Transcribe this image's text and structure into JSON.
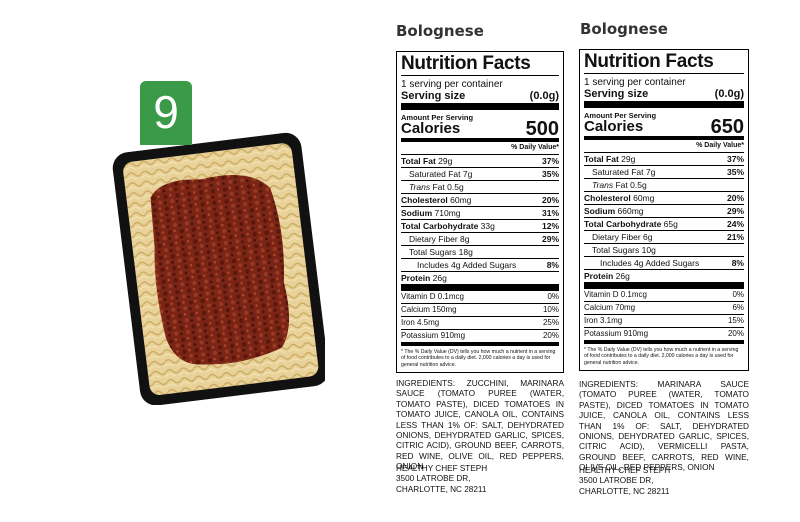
{
  "badge": {
    "number": "9"
  },
  "labels": [
    {
      "product_title": "Bolognese",
      "facts_title": "Nutrition Facts",
      "servings": "1 serving per container",
      "serving_size_label": "Serving size",
      "serving_size_value": "(0.0g)",
      "amount_per_serving": "Amount Per Serving",
      "calories_label": "Calories",
      "calories_value": "500",
      "daily_value_header": "% Daily Value*",
      "total_fat_label": "Total Fat",
      "total_fat_amt": "29g",
      "total_fat_dv": "37%",
      "sat_fat_label": "Saturated Fat",
      "sat_fat_amt": "7g",
      "sat_fat_dv": "35%",
      "trans_fat_label": "Trans",
      "trans_fat_rest": "Fat 0.5g",
      "cholesterol_label": "Cholesterol",
      "cholesterol_amt": "60mg",
      "cholesterol_dv": "20%",
      "sodium_label": "Sodium",
      "sodium_amt": "710mg",
      "sodium_dv": "31%",
      "carb_label": "Total Carbohydrate",
      "carb_amt": "33g",
      "carb_dv": "12%",
      "fiber_label": "Dietary Fiber",
      "fiber_amt": "8g",
      "fiber_dv": "29%",
      "sugars_label": "Total Sugars",
      "sugars_amt": "18g",
      "added_sugars": "Includes 4g Added Sugars",
      "added_sugars_dv": "8%",
      "protein_label": "Protein",
      "protein_amt": "26g",
      "vitd": "Vitamin D 0.1mcg",
      "vitd_dv": "0%",
      "calcium": "Calcium 150mg",
      "calcium_dv": "10%",
      "iron": "Iron 4.5mg",
      "iron_dv": "25%",
      "potassium": "Potassium 910mg",
      "potassium_dv": "20%",
      "footnote": "* The % Daily Value (DV) tells you how much a nutrient in a serving of food contributes to a daily diet. 2,000 calories a day is used for general nutrition advice.",
      "ingredients": "INGREDIENTS: ZUCCHINI, MARINARA SAUCE (TOMATO PUREE (WATER, TOMATO PASTE), DICED TOMATOES IN TOMATO JUICE, CANOLA OIL, CONTAINS LESS THAN 1% OF: SALT, DEHYDRATED ONIONS, DEHYDRATED GARLIC, SPICES, CITRIC ACID), GROUND BEEF, CARROTS, RED WINE, OLIVE OIL, RED PEPPERS, ONION",
      "address_name": "HEALTHY CHEF STEPH",
      "address_street": "3500 LATROBE DR,",
      "address_city": "CHARLOTTE, NC 28211"
    },
    {
      "product_title": "Bolognese",
      "facts_title": "Nutrition Facts",
      "servings": "1 serving per container",
      "serving_size_label": "Serving size",
      "serving_size_value": "(0.0g)",
      "amount_per_serving": "Amount Per Serving",
      "calories_label": "Calories",
      "calories_value": "650",
      "daily_value_header": "% Daily Value*",
      "total_fat_label": "Total Fat",
      "total_fat_amt": "29g",
      "total_fat_dv": "37%",
      "sat_fat_label": "Saturated Fat",
      "sat_fat_amt": "7g",
      "sat_fat_dv": "35%",
      "trans_fat_label": "Trans",
      "trans_fat_rest": "Fat 0.5g",
      "cholesterol_label": "Cholesterol",
      "cholesterol_amt": "60mg",
      "cholesterol_dv": "20%",
      "sodium_label": "Sodium",
      "sodium_amt": "660mg",
      "sodium_dv": "29%",
      "carb_label": "Total Carbohydrate",
      "carb_amt": "65g",
      "carb_dv": "24%",
      "fiber_label": "Dietary Fiber",
      "fiber_amt": "6g",
      "fiber_dv": "21%",
      "sugars_label": "Total Sugars",
      "sugars_amt": "10g",
      "added_sugars": "Includes 4g Added Sugars",
      "added_sugars_dv": "8%",
      "protein_label": "Protein",
      "protein_amt": "26g",
      "vitd": "Vitamin D 0.1mcg",
      "vitd_dv": "0%",
      "calcium": "Calcium 70mg",
      "calcium_dv": "6%",
      "iron": "Iron 3.1mg",
      "iron_dv": "15%",
      "potassium": "Potassium 910mg",
      "potassium_dv": "20%",
      "footnote": "* The % Daily Value (DV) tells you how much a nutrient in a serving of food contributes to a daily diet. 2,000 calories a day is used for general nutrition advice.",
      "ingredients": "INGREDIENTS: MARINARA SAUCE (TOMATO PUREE (WATER, TOMATO PASTE), DICED TOMATOES IN TOMATO JUICE, CANOLA OIL, CONTAINS LESS THAN 1% OF: SALT, DEHYDRATED ONIONS, DEHYDRATED GARLIC, SPICES, CITRIC ACID), VERMICELLI PASTA, GROUND BEEF, CARROTS, RED WINE, OLIVE OIL, RED PEPPERS, ONION",
      "address_name": "HEALTHY CHEF STEPH",
      "address_street": "3500 LATROBE DR,",
      "address_city": "CHARLOTTE, NC 28211"
    }
  ]
}
